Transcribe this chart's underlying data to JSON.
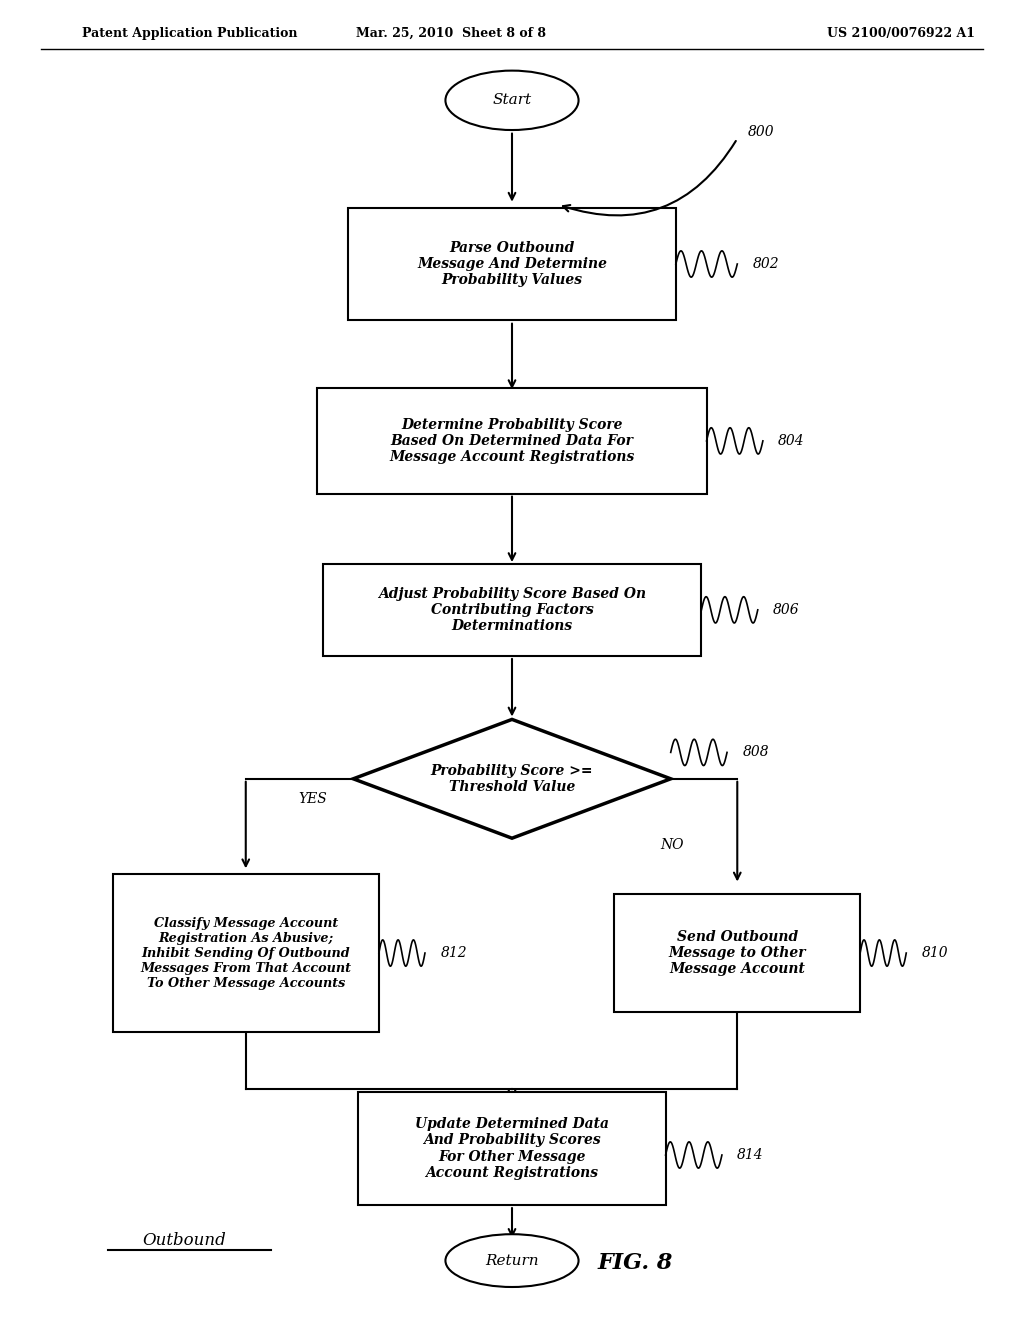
{
  "bg_color": "#ffffff",
  "header_left": "Patent Application Publication",
  "header_center": "Mar. 25, 2010  Sheet 8 of 8",
  "header_right": "US 2100/0076922 A1",
  "fig_label": "FIG. 8",
  "outbound_label": "Outbound",
  "box802_text": "Parse Outbound\nMessage And Determine\nProbability Values",
  "box804_text": "Determine Probability Score\nBased On Determined Data For\nMessage Account Registrations",
  "box806_text": "Adjust Probability Score Based On\nContributing Factors\nDeterminations",
  "diamond808_text": "Probability Score >=\nThreshold Value",
  "box812_text": "Classify Message Account\nRegistration As Abusive;\nInhibit Sending Of Outbound\nMessages From That Account\nTo Other Message Accounts",
  "box810_text": "Send Outbound\nMessage to Other\nMessage Account",
  "box814_text": "Update Determined Data\nAnd Probability Scores\nFor Other Message\nAccount Registrations",
  "label_800": "800",
  "label_802": "802",
  "label_804": "804",
  "label_806": "806",
  "label_808": "808",
  "label_810": "810",
  "label_812": "812",
  "label_814": "814",
  "yes_text": "YES",
  "no_text": "NO",
  "start_text": "Start",
  "return_text": "Return"
}
